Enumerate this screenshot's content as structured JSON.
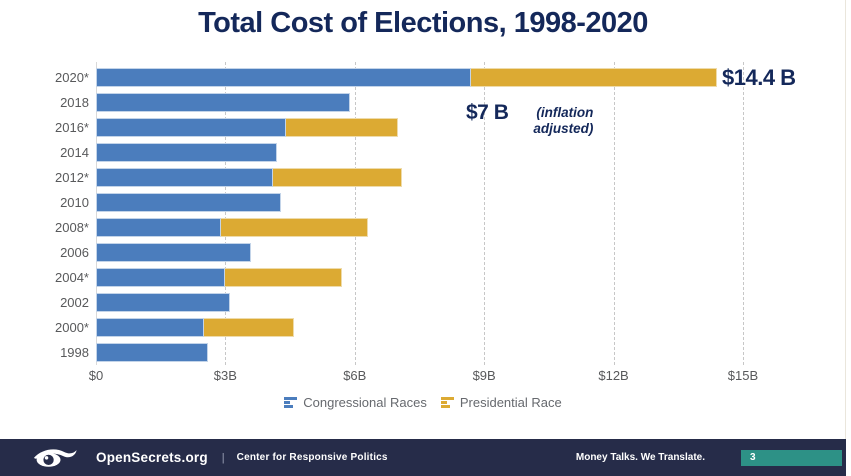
{
  "title": "Total Cost of Elections, 1998-2020",
  "chart_data": {
    "type": "bar",
    "orientation": "horizontal",
    "stacked": true,
    "title": "Total Cost of Elections, 1998-2020",
    "unit": "billions of USD, inflation adjusted",
    "categories": [
      "2020*",
      "2018",
      "2016*",
      "2014",
      "2012*",
      "2010",
      "2008*",
      "2006",
      "2004*",
      "2002",
      "2000*",
      "1998"
    ],
    "series": [
      {
        "name": "Congressional Races",
        "color": "#4b7dbd",
        "values": [
          8.7,
          5.9,
          4.4,
          4.2,
          4.1,
          4.3,
          2.9,
          3.6,
          3.0,
          3.1,
          2.5,
          2.6
        ]
      },
      {
        "name": "Presidential Race",
        "color": "#dcaa33",
        "values": [
          5.7,
          0,
          2.6,
          0,
          3.0,
          0,
          3.4,
          0,
          2.7,
          0,
          2.1,
          0
        ]
      }
    ],
    "totals": [
      14.4,
      5.9,
      7.0,
      4.2,
      7.1,
      4.3,
      6.3,
      3.6,
      5.7,
      3.1,
      4.6,
      2.6
    ],
    "x_ticks": [
      {
        "value": 0,
        "label": "$0"
      },
      {
        "value": 3,
        "label": "$3B"
      },
      {
        "value": 6,
        "label": "$6B"
      },
      {
        "value": 9,
        "label": "$9B"
      },
      {
        "value": 12,
        "label": "$12B"
      },
      {
        "value": 15,
        "label": "$15B"
      }
    ],
    "xlim": [
      0,
      16.4
    ],
    "grid": "dashed-vertical",
    "legend_position": "bottom",
    "annotations": [
      {
        "text": "$14.4 B",
        "attached_to": "2020*"
      },
      {
        "text": "$7 B",
        "note": "(inflation adjusted)"
      }
    ]
  },
  "legend": [
    {
      "label": "Congressional Races",
      "color": "#4b7dbd"
    },
    {
      "label": "Presidential Race",
      "color": "#dcaa33"
    }
  ],
  "footer": {
    "brand": "OpenSecrets.org",
    "divider": "|",
    "org": "Center for Responsive Politics",
    "tagline": "Money Talks. We Translate.",
    "page": "3"
  },
  "colors": {
    "title_navy": "#14285a",
    "congressional_blue": "#4b7dbd",
    "presidential_gold": "#dcaa33",
    "footer_navy": "#262c49",
    "page_badge_teal": "#2d9186",
    "axis_text": "#58595b"
  }
}
